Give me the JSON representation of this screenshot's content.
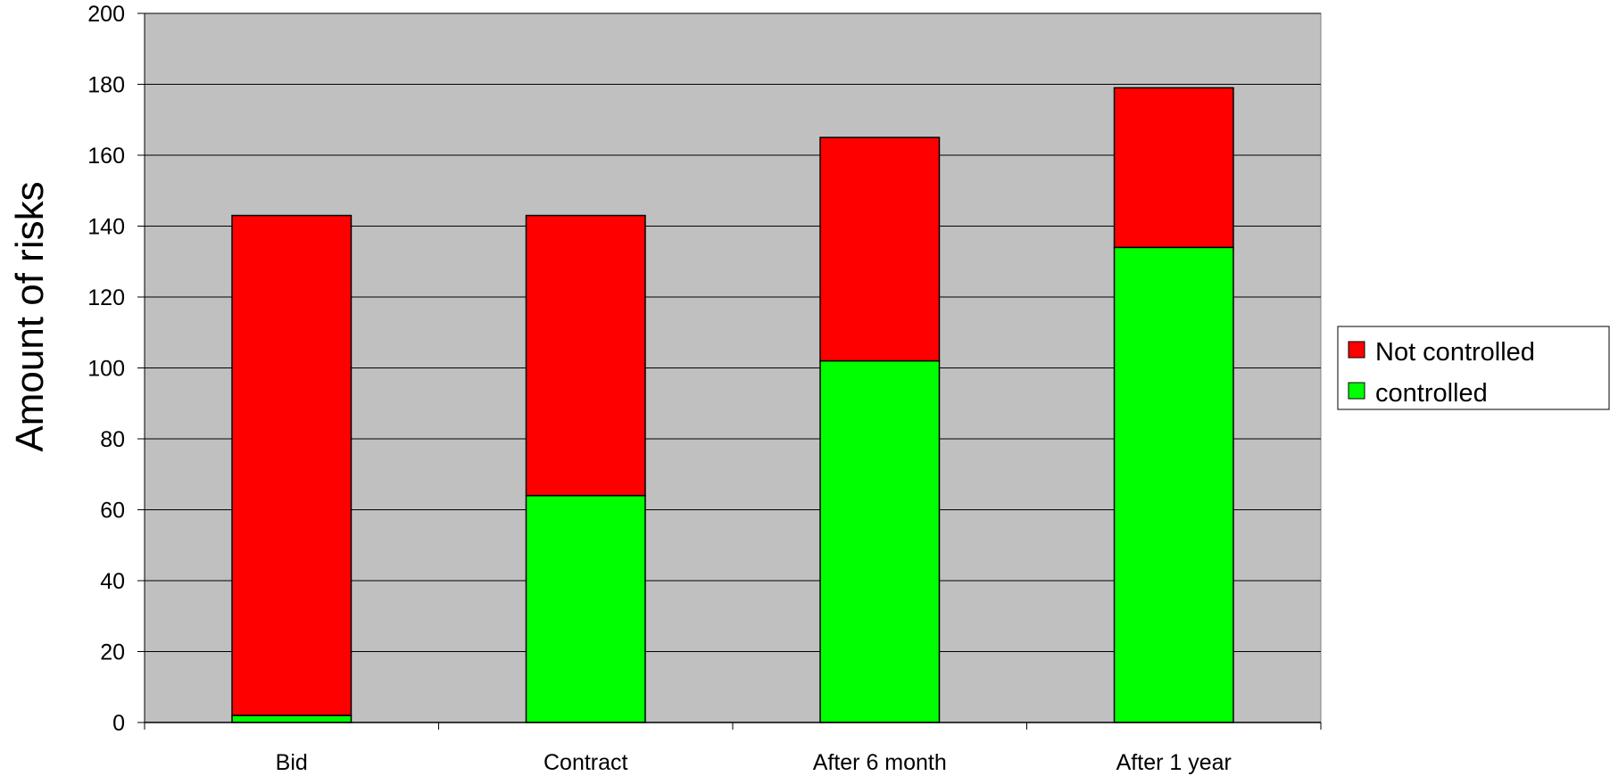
{
  "chart_data": {
    "type": "bar",
    "stacked": true,
    "categories": [
      "Bid",
      "Contract",
      "After 6 month",
      "After 1 year"
    ],
    "series": [
      {
        "name": "controlled",
        "values": [
          2,
          64,
          102,
          134
        ],
        "color": "#00ff00"
      },
      {
        "name": "Not controlled",
        "values": [
          141,
          79,
          63,
          45
        ],
        "color": "#ff0000"
      }
    ],
    "title": "",
    "xlabel": "",
    "ylabel": "Amount of risks",
    "ylim": [
      0,
      200
    ],
    "yticks": [
      "0",
      "20",
      "40",
      "60",
      "80",
      "100",
      "120",
      "140",
      "160",
      "180",
      "200"
    ],
    "grid": true,
    "plot_background": "#c0c0c0",
    "legend": {
      "position": "right",
      "entries": [
        "Not controlled",
        "controlled"
      ]
    }
  }
}
